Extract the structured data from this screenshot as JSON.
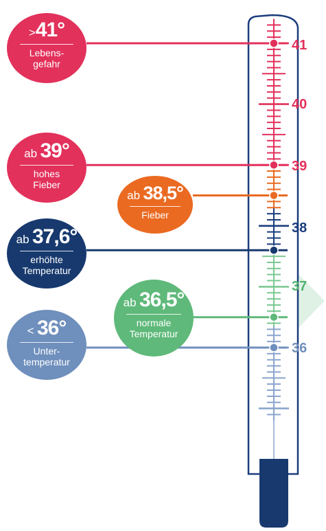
{
  "scale": {
    "labels": [
      {
        "text": "41",
        "value": 41.0,
        "color": "#e2315b"
      },
      {
        "text": "40",
        "value": 40.0,
        "color": "#e2315b"
      },
      {
        "text": "39",
        "value": 39.0,
        "color": "#e2315b"
      },
      {
        "text": "38",
        "value": 38.0,
        "color": "#1a3c7c"
      },
      {
        "text": "37",
        "value": 37.0,
        "color": "#4fb46f"
      },
      {
        "text": "36",
        "value": 36.0,
        "color": "#6f8fbd"
      }
    ]
  },
  "thresholds": [
    {
      "id": "b41",
      "prefix": ">",
      "value_text": "41°",
      "description": "Lebens-\ngefahr",
      "value": 41.0,
      "color": "#e2315b"
    },
    {
      "id": "b39",
      "prefix": "ab",
      "value_text": "39°",
      "description": "hohes\nFieber",
      "value": 39.0,
      "color": "#e2315b"
    },
    {
      "id": "b385",
      "prefix": "ab",
      "value_text": "38,5°",
      "description": "Fieber",
      "value": 38.5,
      "color": "#ea6a22"
    },
    {
      "id": "b376",
      "prefix": "ab",
      "value_text": "37,6°",
      "description": "erhöhte\nTemperatur",
      "value": 37.6,
      "color": "#17396e"
    },
    {
      "id": "b365",
      "prefix": "ab",
      "value_text": "36,5°",
      "description": "normale\nTemperatur",
      "value": 36.5,
      "color": "#5fb97a"
    },
    {
      "id": "b36",
      "prefix": "<",
      "value_text": "36°",
      "description": "Unter-\ntemperatur",
      "value": 36.0,
      "color": "#6f8fbd"
    }
  ],
  "colors": {
    "tube_outline": "#1a3c7c",
    "bulb": "#17396e",
    "zone_red": "#e2315b",
    "zone_orange": "#ea6a22",
    "zone_navy": "#1a3c7c",
    "zone_green": "#7cc892",
    "zone_blue": "#8aa5cc",
    "highlight_arrow": "#dff1e5"
  }
}
